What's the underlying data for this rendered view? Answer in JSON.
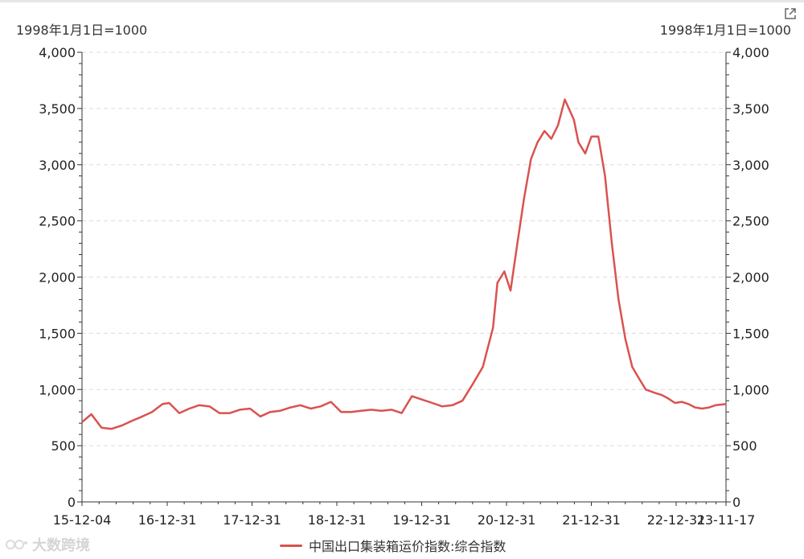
{
  "chart_data": {
    "type": "line",
    "y_unit_left": "1998年1月1日=1000",
    "y_unit_right": "1998年1月1日=1000",
    "ylim": [
      0,
      4000
    ],
    "yticks": [
      "0",
      "500",
      "1,000",
      "1,500",
      "2,000",
      "2,500",
      "3,000",
      "3,500",
      "4,000"
    ],
    "ytick_values": [
      0,
      500,
      1000,
      1500,
      2000,
      2500,
      3000,
      3500,
      4000
    ],
    "xticks": [
      "15-12-04",
      "16-12-31",
      "17-12-31",
      "18-12-31",
      "19-12-31",
      "20-12-31",
      "21-12-31",
      "22-12-31",
      "23-11-17"
    ],
    "xlim": [
      "2015-12-04",
      "2023-11-17"
    ],
    "grid": true,
    "legend_position": "bottom-center",
    "series": [
      {
        "name": "中国出口集装箱运价指数:综合指数",
        "color": "#d9534f",
        "x": [
          "2015-12-04",
          "2016-01-15",
          "2016-03-01",
          "2016-04-15",
          "2016-06-01",
          "2016-07-15",
          "2016-09-01",
          "2016-10-15",
          "2016-12-01",
          "2016-12-31",
          "2017-02-15",
          "2017-04-01",
          "2017-05-15",
          "2017-07-01",
          "2017-08-15",
          "2017-10-01",
          "2017-11-15",
          "2017-12-31",
          "2018-02-15",
          "2018-04-01",
          "2018-05-15",
          "2018-07-01",
          "2018-08-15",
          "2018-10-01",
          "2018-11-15",
          "2018-12-31",
          "2019-02-15",
          "2019-04-01",
          "2019-05-15",
          "2019-07-01",
          "2019-08-15",
          "2019-10-01",
          "2019-11-15",
          "2019-12-31",
          "2020-02-15",
          "2020-04-01",
          "2020-05-15",
          "2020-07-01",
          "2020-08-15",
          "2020-10-01",
          "2020-11-15",
          "2020-12-31",
          "2021-01-20",
          "2021-02-20",
          "2021-03-20",
          "2021-04-20",
          "2021-05-20",
          "2021-06-20",
          "2021-07-20",
          "2021-08-20",
          "2021-09-20",
          "2021-10-20",
          "2021-11-20",
          "2021-12-31",
          "2022-01-20",
          "2022-02-20",
          "2022-03-20",
          "2022-04-20",
          "2022-05-20",
          "2022-06-20",
          "2022-07-20",
          "2022-08-20",
          "2022-09-20",
          "2022-10-20",
          "2022-11-20",
          "2022-12-31",
          "2023-02-01",
          "2023-03-01",
          "2023-04-01",
          "2023-05-01",
          "2023-06-01",
          "2023-07-01",
          "2023-08-01",
          "2023-09-01",
          "2023-10-01",
          "2023-11-17"
        ],
        "values": [
          710,
          780,
          660,
          650,
          680,
          720,
          760,
          800,
          870,
          880,
          790,
          830,
          860,
          850,
          790,
          790,
          820,
          830,
          760,
          800,
          810,
          840,
          860,
          830,
          850,
          890,
          800,
          800,
          810,
          820,
          810,
          820,
          790,
          940,
          910,
          880,
          850,
          860,
          900,
          1050,
          1200,
          1550,
          1950,
          2050,
          1880,
          2300,
          2700,
          3050,
          3200,
          3300,
          3230,
          3350,
          3580,
          3400,
          3200,
          3100,
          3250,
          3250,
          2900,
          2300,
          1800,
          1450,
          1200,
          1100,
          1000,
          970,
          950,
          920,
          880,
          890,
          870,
          840,
          830,
          840,
          860,
          870
        ]
      }
    ]
  },
  "legend": {
    "label": "中国出口集装箱运价指数:综合指数"
  },
  "watermark": {
    "text": "大数跨境"
  }
}
